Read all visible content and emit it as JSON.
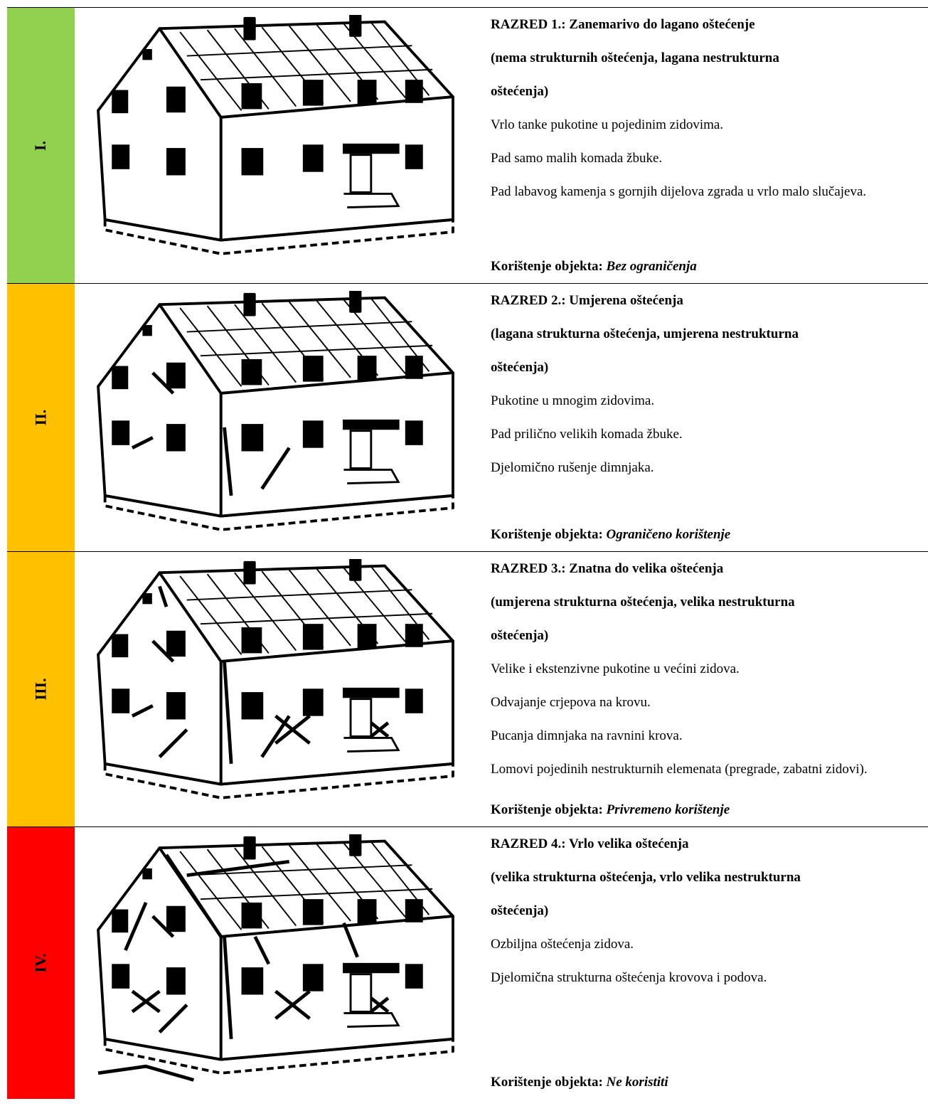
{
  "rows": [
    {
      "grade": "I.",
      "color": "#92d050",
      "title": "RAZRED 1.: Zanemarivo do lagano oštećenje",
      "subtitle": "(nema strukturnih oštećenja, lagana nestrukturna oštećenja)",
      "items": [
        "Vrlo tanke pukotine u pojedinim zidovima.",
        "Pad samo malih komada žbuke.",
        "Pad labavog kamenja s gornjih dijelova zgrada u vrlo malo slučajeva."
      ],
      "usage_label": "Korištenje objekta:",
      "usage": "Bez ograničenja"
    },
    {
      "grade": "II.",
      "color": "#ffc000",
      "title": "RAZRED 2.: Umjerena oštećenja",
      "subtitle": "(lagana strukturna oštećenja, umjerena nestrukturna oštećenja)",
      "items": [
        "Pukotine u mnogim zidovima.",
        "Pad prilično velikih komada žbuke.",
        "Djelomično rušenje dimnjaka."
      ],
      "usage_label": "Korištenje objekta:",
      "usage": "Ograničeno korištenje"
    },
    {
      "grade": "III.",
      "color": "#ffc000",
      "title": "RAZRED 3.: Znatna do velika oštećenja",
      "subtitle": "(umjerena strukturna oštećenja, velika nestrukturna oštećenja)",
      "items": [
        "Velike i ekstenzivne pukotine u većini zidova.",
        "Odvajanje crjepova na krovu.",
        "Pucanja dimnjaka na ravnini krova.",
        "Lomovi pojedinih nestrukturnih elemenata (pregrade, zabatni zidovi)."
      ],
      "usage_label": "Korištenje objekta:",
      "usage": "Privremeno korištenje"
    },
    {
      "grade": "IV.",
      "color": "#ff0000",
      "title": "RAZRED 4.: Vrlo velika oštećenja",
      "subtitle": "(velika strukturna oštećenja, vrlo velika nestrukturna oštećenja)",
      "items": [
        "Ozbiljna oštećenja zidova.",
        "Djelomična strukturna oštećenja krovova i podova."
      ],
      "usage_label": "Korištenje objekta:",
      "usage": "Ne koristiti"
    }
  ]
}
